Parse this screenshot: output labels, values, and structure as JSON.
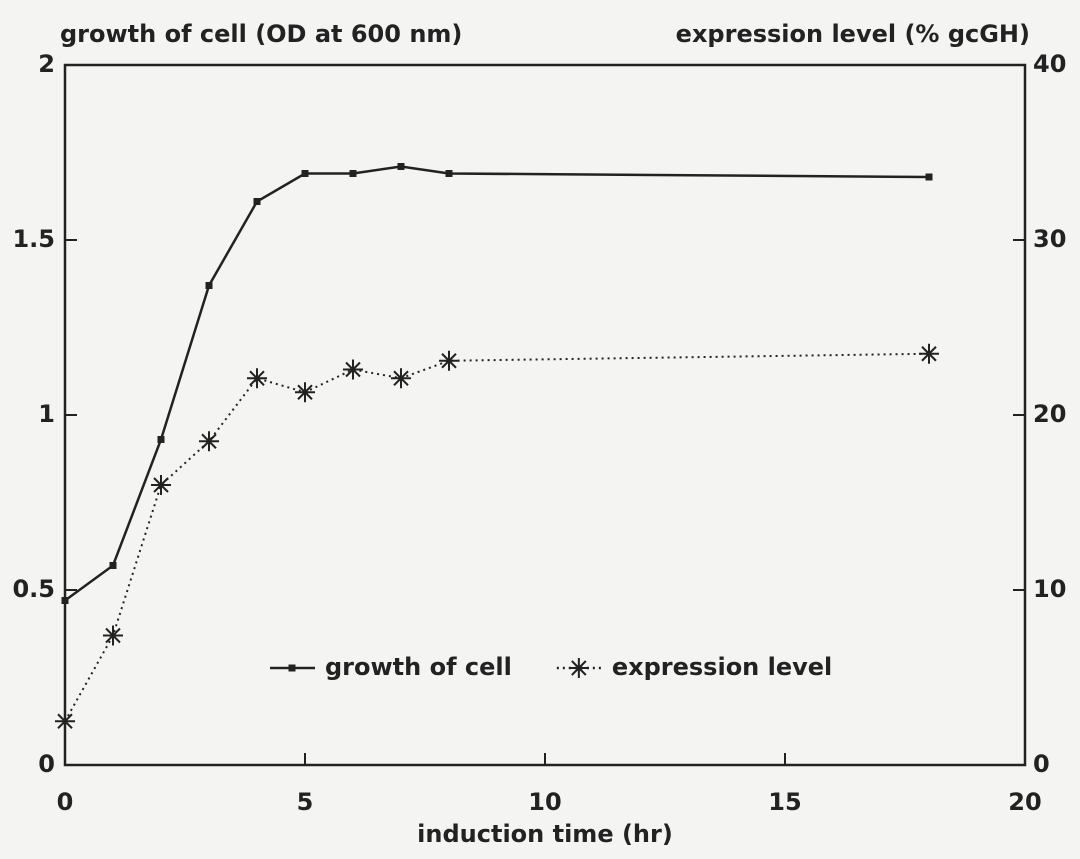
{
  "chart_data": {
    "type": "line",
    "y_label": "growth of cell (OD at 600 nm)",
    "y2_label": "expression level (% gcGH)",
    "x_label": "induction time (hr)",
    "x": [
      0,
      1,
      2,
      3,
      4,
      5,
      6,
      7,
      8,
      18
    ],
    "series": [
      {
        "name": "growth of cell",
        "color": "#222222",
        "axis": "y",
        "marker": "square",
        "dash": "solid",
        "values": [
          0.47,
          0.57,
          0.93,
          1.37,
          1.61,
          1.69,
          1.69,
          1.71,
          1.69,
          1.68
        ]
      },
      {
        "name": "expression level",
        "color": "#222222",
        "axis": "y2",
        "marker": "asterisk",
        "dash": "dotted",
        "values": [
          2.5,
          7.4,
          16,
          18.5,
          22.1,
          21.3,
          22.6,
          22.1,
          23.1,
          23.5
        ]
      }
    ],
    "xlim": [
      0,
      20
    ],
    "xticks": [
      0,
      5,
      10,
      15,
      20
    ],
    "ylim": [
      0,
      2
    ],
    "yticks": [
      0,
      0.5,
      1,
      1.5,
      2
    ],
    "y2lim": [
      0,
      40
    ],
    "y2ticks": [
      0,
      10,
      20,
      30,
      40
    ],
    "legend": "bottom-center"
  }
}
